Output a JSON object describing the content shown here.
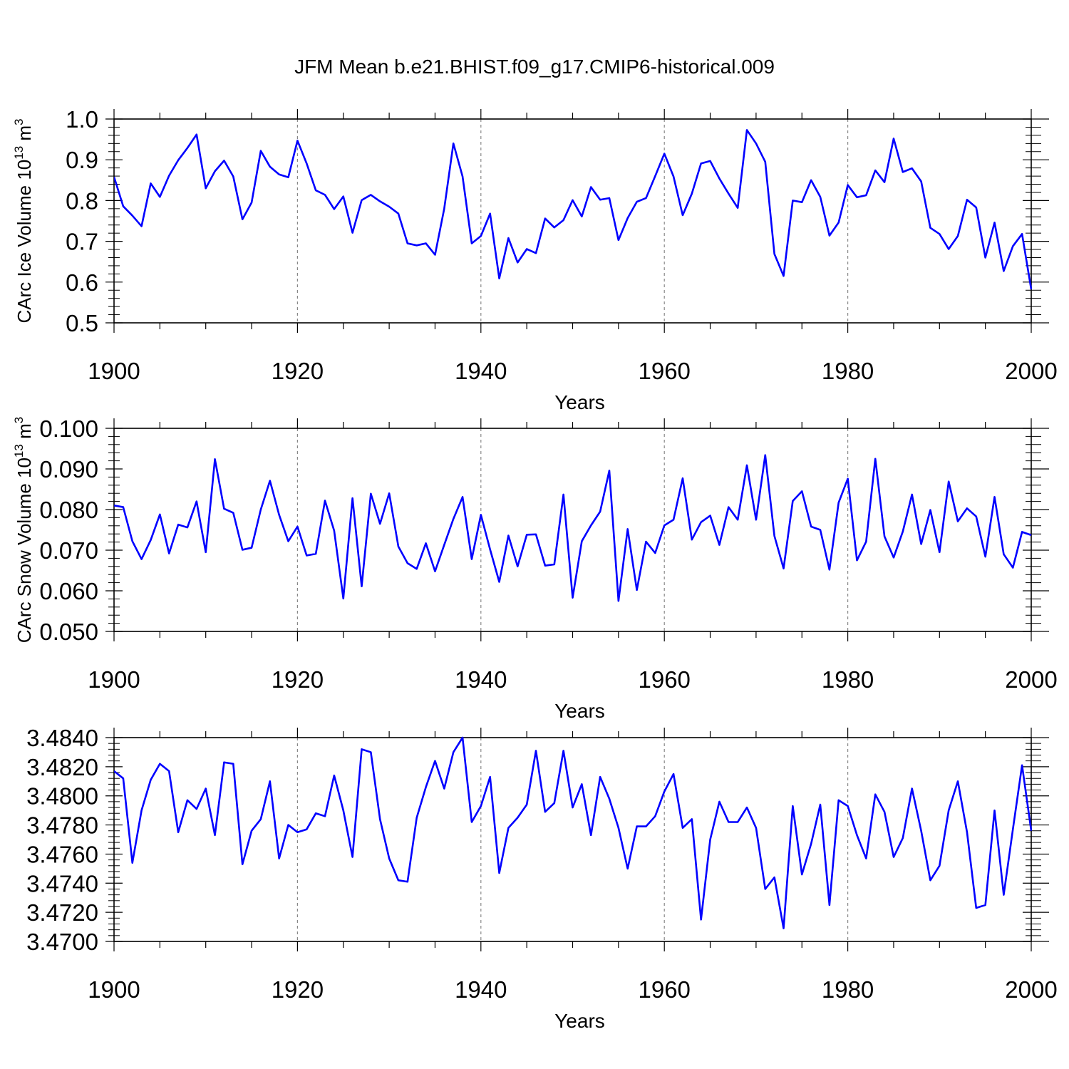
{
  "title": "JFM Mean b.e21.BHIST.f09_g17.CMIP6-historical.009",
  "line_color": "#0000ff",
  "chart_data": [
    {
      "type": "line",
      "ylabel": "CArc Ice Volume 10",
      "ylabel_exponent": "13",
      "ylabel_unit": " m",
      "ylabel_unit_exponent": "3",
      "xlabel": "Years",
      "xlim": [
        1900,
        2000
      ],
      "ylim": [
        0.5,
        1.0
      ],
      "x_ticks": [
        "1900",
        "1920",
        "1940",
        "1960",
        "1980",
        "2000"
      ],
      "y_ticks": [
        "0.5",
        "0.6",
        "0.7",
        "0.8",
        "0.9",
        "1.0"
      ],
      "grid": "dashed vertical at major x ticks",
      "x_start": 1900,
      "values": [
        0.858,
        0.786,
        0.763,
        0.737,
        0.842,
        0.809,
        0.861,
        0.899,
        0.929,
        0.962,
        0.83,
        0.872,
        0.898,
        0.859,
        0.754,
        0.795,
        0.922,
        0.883,
        0.864,
        0.857,
        0.947,
        0.891,
        0.825,
        0.814,
        0.779,
        0.81,
        0.721,
        0.801,
        0.814,
        0.798,
        0.785,
        0.768,
        0.695,
        0.69,
        0.695,
        0.667,
        0.78,
        0.94,
        0.859,
        0.695,
        0.713,
        0.768,
        0.609,
        0.708,
        0.648,
        0.681,
        0.671,
        0.756,
        0.734,
        0.752,
        0.801,
        0.761,
        0.833,
        0.802,
        0.806,
        0.703,
        0.757,
        0.797,
        0.806,
        0.86,
        0.915,
        0.859,
        0.764,
        0.817,
        0.891,
        0.897,
        0.854,
        0.817,
        0.782,
        0.973,
        0.94,
        0.895,
        0.669,
        0.615,
        0.8,
        0.796,
        0.85,
        0.809,
        0.714,
        0.746,
        0.838,
        0.808,
        0.813,
        0.874,
        0.845,
        0.952,
        0.87,
        0.879,
        0.847,
        0.733,
        0.718,
        0.681,
        0.713,
        0.802,
        0.783,
        0.66,
        0.746,
        0.627,
        0.688,
        0.718,
        0.582
      ]
    },
    {
      "type": "line",
      "ylabel": "CArc Snow Volume 10",
      "ylabel_exponent": "13",
      "ylabel_unit": " m",
      "ylabel_unit_exponent": "3",
      "xlabel": "Years",
      "xlim": [
        1900,
        2000
      ],
      "ylim": [
        0.05,
        0.1
      ],
      "x_ticks": [
        "1900",
        "1920",
        "1940",
        "1960",
        "1980",
        "2000"
      ],
      "y_ticks": [
        "0.050",
        "0.060",
        "0.070",
        "0.080",
        "0.090",
        "0.100"
      ],
      "grid": "dashed vertical at major x ticks",
      "x_start": 1900,
      "values": [
        0.081,
        0.0806,
        0.0722,
        0.0678,
        0.0725,
        0.0788,
        0.0692,
        0.0763,
        0.0756,
        0.082,
        0.0695,
        0.0924,
        0.0802,
        0.0792,
        0.0701,
        0.0706,
        0.08,
        0.0871,
        0.0787,
        0.0722,
        0.0758,
        0.0687,
        0.0691,
        0.0822,
        0.0748,
        0.0581,
        0.0828,
        0.0611,
        0.0839,
        0.0765,
        0.084,
        0.0709,
        0.0668,
        0.0654,
        0.0717,
        0.0648,
        0.0713,
        0.0777,
        0.0831,
        0.0678,
        0.0787,
        0.0702,
        0.0622,
        0.0736,
        0.066,
        0.0738,
        0.0739,
        0.0662,
        0.0665,
        0.0837,
        0.0583,
        0.0722,
        0.0761,
        0.0795,
        0.0896,
        0.0575,
        0.0752,
        0.0602,
        0.0721,
        0.0693,
        0.0761,
        0.0775,
        0.0877,
        0.0726,
        0.0769,
        0.0785,
        0.0713,
        0.0806,
        0.0775,
        0.0909,
        0.0775,
        0.0934,
        0.0735,
        0.0655,
        0.0821,
        0.0845,
        0.0758,
        0.075,
        0.0652,
        0.0817,
        0.0876,
        0.0675,
        0.0721,
        0.0925,
        0.0734,
        0.0682,
        0.0746,
        0.0837,
        0.0715,
        0.0799,
        0.0695,
        0.0869,
        0.0771,
        0.0803,
        0.0783,
        0.0684,
        0.0831,
        0.069,
        0.0657,
        0.0745,
        0.0737
      ]
    },
    {
      "type": "line",
      "ylabel": "",
      "xlabel": "Years",
      "xlim": [
        1900,
        2000
      ],
      "ylim": [
        3.47,
        3.484
      ],
      "x_ticks": [
        "1900",
        "1920",
        "1940",
        "1960",
        "1980",
        "2000"
      ],
      "y_ticks": [
        "3.4700",
        "3.4720",
        "3.4740",
        "3.4760",
        "3.4780",
        "3.4800",
        "3.4820",
        "3.4840"
      ],
      "grid": "dashed vertical at major x ticks",
      "x_start": 1900,
      "values": [
        3.4817,
        3.4812,
        3.4754,
        3.479,
        3.4811,
        3.4822,
        3.4817,
        3.4775,
        3.4797,
        3.4791,
        3.4805,
        3.4773,
        3.4823,
        3.4822,
        3.4753,
        3.4776,
        3.4784,
        3.481,
        3.4757,
        3.478,
        3.4775,
        3.4777,
        3.4788,
        3.4786,
        3.4814,
        3.479,
        3.4758,
        3.4832,
        3.483,
        3.4784,
        3.4757,
        3.4742,
        3.4741,
        3.4785,
        3.4806,
        3.4824,
        3.4805,
        3.483,
        3.484,
        3.4782,
        3.4793,
        3.4813,
        3.4747,
        3.4778,
        3.4785,
        3.4794,
        3.4831,
        3.4789,
        3.4795,
        3.4831,
        3.4792,
        3.4808,
        3.4773,
        3.4813,
        3.4798,
        3.4778,
        3.475,
        3.4779,
        3.4779,
        3.4786,
        3.4803,
        3.4815,
        3.4778,
        3.4784,
        3.4715,
        3.477,
        3.4796,
        3.4782,
        3.4782,
        3.4792,
        3.4778,
        3.4736,
        3.4744,
        3.4709,
        3.4793,
        3.4746,
        3.4767,
        3.4794,
        3.4725,
        3.4797,
        3.4793,
        3.4773,
        3.4757,
        3.4801,
        3.4789,
        3.4758,
        3.4771,
        3.4805,
        3.4776,
        3.4742,
        3.4752,
        3.479,
        3.481,
        3.4775,
        3.4723,
        3.4725,
        3.479,
        3.4732,
        3.4777,
        3.4821,
        3.4776
      ]
    }
  ]
}
